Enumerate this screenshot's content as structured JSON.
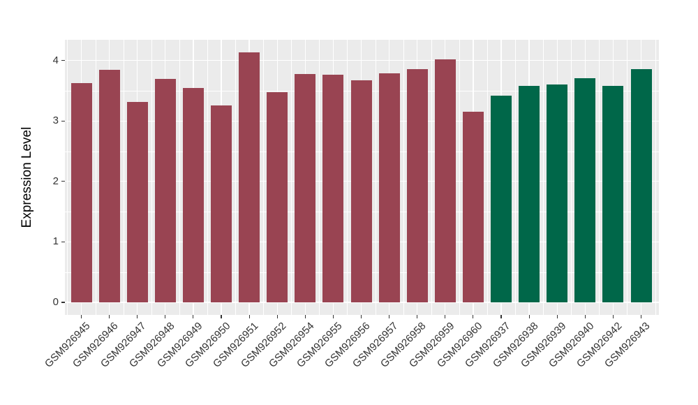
{
  "chart_data": {
    "type": "bar",
    "title": "",
    "ylabel": "Expression Level",
    "xlabel": "",
    "legend": "none",
    "grid": "major and minor, white on gray panel",
    "ylim": [
      0,
      4.33
    ],
    "yticks": [
      0,
      1,
      2,
      3,
      4
    ],
    "categories": [
      "GSM926945",
      "GSM926946",
      "GSM926947",
      "GSM926948",
      "GSM926949",
      "GSM926950",
      "GSM926951",
      "GSM926952",
      "GSM926954",
      "GSM926955",
      "GSM926956",
      "GSM926957",
      "GSM926958",
      "GSM926959",
      "GSM926960",
      "GSM926937",
      "GSM926938",
      "GSM926939",
      "GSM926940",
      "GSM926942",
      "GSM926943"
    ],
    "values": [
      3.63,
      3.84,
      3.31,
      3.7,
      3.54,
      3.26,
      4.13,
      3.47,
      3.78,
      3.77,
      3.67,
      3.79,
      3.86,
      4.02,
      3.15,
      3.42,
      3.58,
      3.6,
      3.71,
      3.58,
      3.86
    ],
    "groups": [
      "group1",
      "group1",
      "group1",
      "group1",
      "group1",
      "group1",
      "group1",
      "group1",
      "group1",
      "group1",
      "group1",
      "group1",
      "group1",
      "group1",
      "group1",
      "group2",
      "group2",
      "group2",
      "group2",
      "group2",
      "group2"
    ],
    "colors": {
      "group1": "#994452",
      "group2": "#006749",
      "panel_bg": "#EBEBEB",
      "grid": "#FFFFFF",
      "axis_text": "#333333",
      "axis_title": "#000000",
      "tick_mark": "#333333"
    }
  }
}
